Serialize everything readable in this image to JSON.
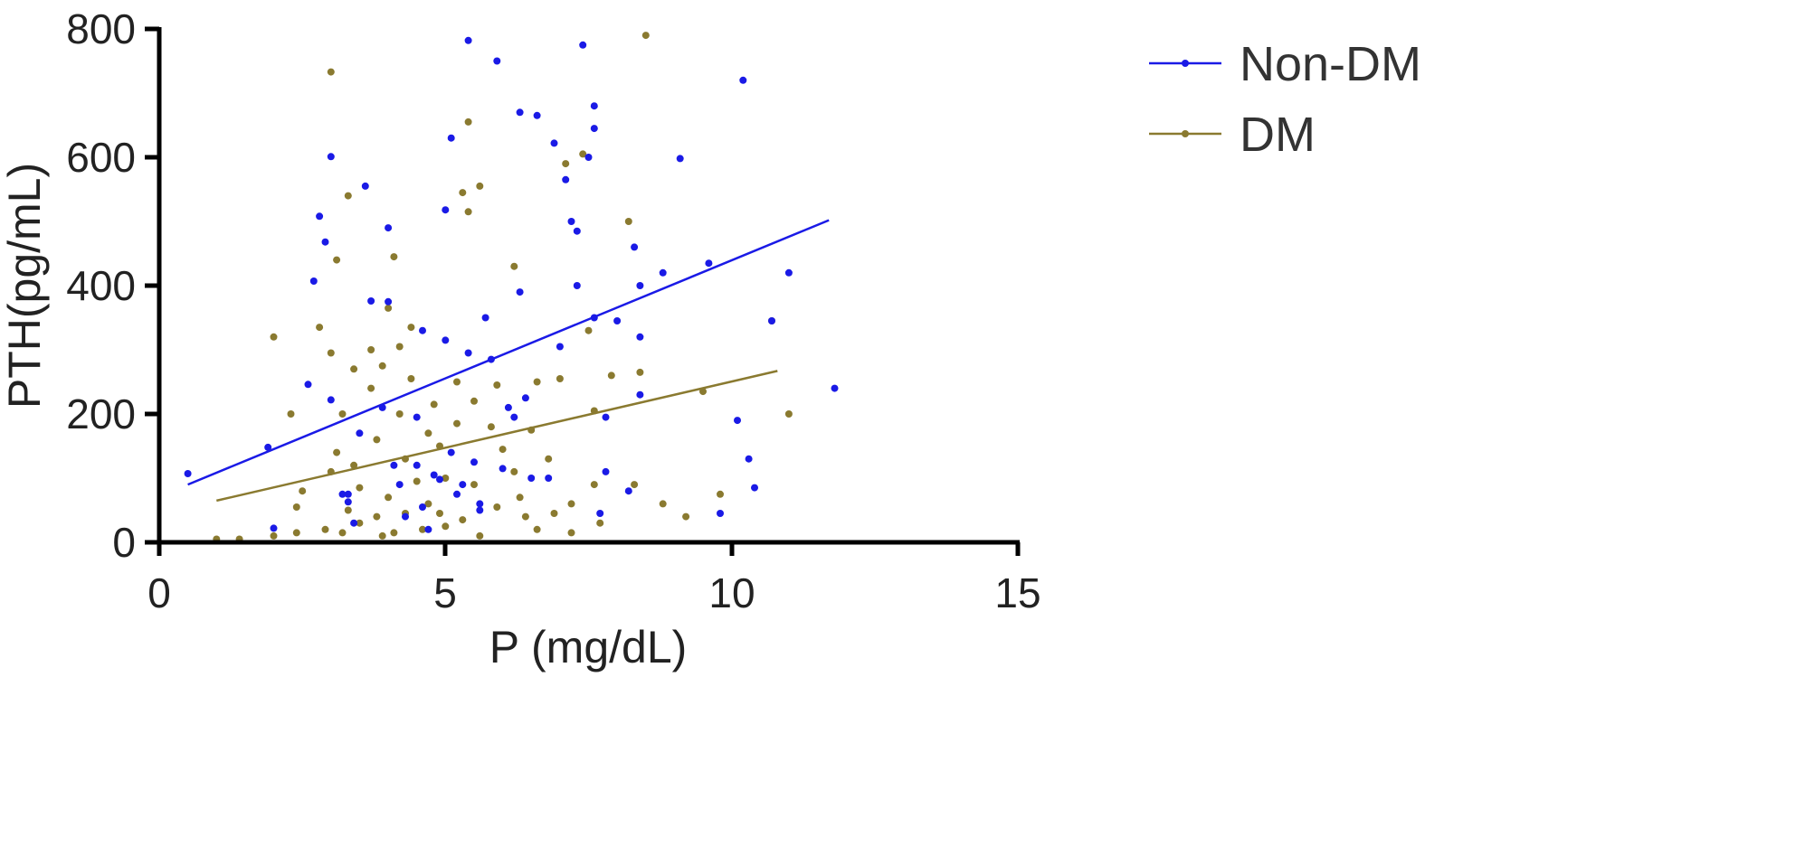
{
  "chart_data": {
    "type": "scatter",
    "xlabel": "P (mg/dL)",
    "ylabel": "PTH(pg/mL)",
    "xlim": [
      0,
      15
    ],
    "ylim": [
      0,
      800
    ],
    "x_ticks": [
      "0",
      "5",
      "10",
      "15"
    ],
    "y_ticks": [
      "0",
      "200",
      "400",
      "600",
      "800"
    ],
    "legend_position": "top-right",
    "series": [
      {
        "name": "Non-DM",
        "color": "#1a1ae6",
        "trend": {
          "x": [
            0.5,
            11.7
          ],
          "y": [
            90,
            502
          ]
        },
        "points": [
          [
            0.5,
            107
          ],
          [
            1.9,
            148
          ],
          [
            2.0,
            22
          ],
          [
            2.6,
            246
          ],
          [
            2.7,
            407
          ],
          [
            2.8,
            508
          ],
          [
            2.9,
            468
          ],
          [
            3.0,
            601
          ],
          [
            3.0,
            222
          ],
          [
            3.2,
            75
          ],
          [
            3.3,
            75
          ],
          [
            3.3,
            63
          ],
          [
            3.4,
            30
          ],
          [
            3.5,
            170
          ],
          [
            3.6,
            555
          ],
          [
            3.7,
            376
          ],
          [
            3.9,
            210
          ],
          [
            4.0,
            490
          ],
          [
            4.0,
            375
          ],
          [
            4.1,
            120
          ],
          [
            4.2,
            90
          ],
          [
            4.3,
            40
          ],
          [
            4.5,
            195
          ],
          [
            4.5,
            120
          ],
          [
            4.6,
            330
          ],
          [
            4.6,
            55
          ],
          [
            4.7,
            20
          ],
          [
            4.8,
            105
          ],
          [
            4.9,
            98
          ],
          [
            5.0,
            518
          ],
          [
            5.0,
            315
          ],
          [
            5.1,
            630
          ],
          [
            5.1,
            140
          ],
          [
            5.2,
            75
          ],
          [
            5.3,
            90
          ],
          [
            5.4,
            295
          ],
          [
            5.4,
            782
          ],
          [
            5.5,
            125
          ],
          [
            5.6,
            60
          ],
          [
            5.6,
            50
          ],
          [
            5.7,
            350
          ],
          [
            5.8,
            285
          ],
          [
            5.9,
            750
          ],
          [
            6.0,
            115
          ],
          [
            6.1,
            210
          ],
          [
            6.2,
            195
          ],
          [
            6.3,
            670
          ],
          [
            6.3,
            390
          ],
          [
            6.4,
            225
          ],
          [
            6.5,
            100
          ],
          [
            6.6,
            665
          ],
          [
            6.8,
            100
          ],
          [
            6.9,
            622
          ],
          [
            7.0,
            305
          ],
          [
            7.1,
            565
          ],
          [
            7.2,
            500
          ],
          [
            7.3,
            485
          ],
          [
            7.3,
            400
          ],
          [
            7.4,
            775
          ],
          [
            7.5,
            600
          ],
          [
            7.6,
            680
          ],
          [
            7.6,
            645
          ],
          [
            7.6,
            350
          ],
          [
            7.7,
            45
          ],
          [
            7.8,
            195
          ],
          [
            7.8,
            110
          ],
          [
            8.0,
            345
          ],
          [
            8.2,
            80
          ],
          [
            8.3,
            460
          ],
          [
            8.4,
            400
          ],
          [
            8.4,
            320
          ],
          [
            8.4,
            230
          ],
          [
            8.8,
            420
          ],
          [
            9.1,
            598
          ],
          [
            9.6,
            435
          ],
          [
            9.8,
            45
          ],
          [
            10.1,
            190
          ],
          [
            10.2,
            720
          ],
          [
            10.3,
            130
          ],
          [
            10.4,
            85
          ],
          [
            10.7,
            345
          ],
          [
            11.0,
            420
          ],
          [
            11.8,
            240
          ]
        ]
      },
      {
        "name": "DM",
        "color": "#8a7a30",
        "trend": {
          "x": [
            1.0,
            10.8
          ],
          "y": [
            65,
            267
          ]
        },
        "points": [
          [
            1.0,
            5
          ],
          [
            1.4,
            5
          ],
          [
            2.0,
            320
          ],
          [
            2.0,
            10
          ],
          [
            2.3,
            200
          ],
          [
            2.4,
            55
          ],
          [
            2.4,
            15
          ],
          [
            2.5,
            80
          ],
          [
            2.8,
            335
          ],
          [
            2.9,
            20
          ],
          [
            3.0,
            733
          ],
          [
            3.0,
            295
          ],
          [
            3.0,
            110
          ],
          [
            3.1,
            440
          ],
          [
            3.1,
            140
          ],
          [
            3.2,
            200
          ],
          [
            3.2,
            15
          ],
          [
            3.3,
            540
          ],
          [
            3.3,
            50
          ],
          [
            3.4,
            270
          ],
          [
            3.4,
            120
          ],
          [
            3.5,
            85
          ],
          [
            3.5,
            30
          ],
          [
            3.7,
            300
          ],
          [
            3.7,
            240
          ],
          [
            3.8,
            160
          ],
          [
            3.8,
            40
          ],
          [
            3.9,
            275
          ],
          [
            3.9,
            10
          ],
          [
            4.0,
            365
          ],
          [
            4.0,
            70
          ],
          [
            4.1,
            445
          ],
          [
            4.1,
            15
          ],
          [
            4.2,
            305
          ],
          [
            4.2,
            200
          ],
          [
            4.3,
            130
          ],
          [
            4.3,
            45
          ],
          [
            4.4,
            335
          ],
          [
            4.4,
            255
          ],
          [
            4.5,
            95
          ],
          [
            4.6,
            20
          ],
          [
            4.7,
            170
          ],
          [
            4.7,
            60
          ],
          [
            4.8,
            215
          ],
          [
            4.9,
            150
          ],
          [
            4.9,
            45
          ],
          [
            5.0,
            100
          ],
          [
            5.0,
            25
          ],
          [
            5.2,
            250
          ],
          [
            5.2,
            185
          ],
          [
            5.3,
            545
          ],
          [
            5.3,
            35
          ],
          [
            5.4,
            515
          ],
          [
            5.4,
            655
          ],
          [
            5.5,
            220
          ],
          [
            5.5,
            90
          ],
          [
            5.6,
            555
          ],
          [
            5.6,
            10
          ],
          [
            5.8,
            180
          ],
          [
            5.9,
            245
          ],
          [
            5.9,
            55
          ],
          [
            6.0,
            145
          ],
          [
            6.2,
            430
          ],
          [
            6.2,
            110
          ],
          [
            6.3,
            70
          ],
          [
            6.4,
            40
          ],
          [
            6.5,
            175
          ],
          [
            6.6,
            250
          ],
          [
            6.6,
            20
          ],
          [
            6.8,
            130
          ],
          [
            6.9,
            45
          ],
          [
            7.0,
            255
          ],
          [
            7.1,
            590
          ],
          [
            7.2,
            60
          ],
          [
            7.2,
            15
          ],
          [
            7.4,
            605
          ],
          [
            7.5,
            330
          ],
          [
            7.6,
            205
          ],
          [
            7.6,
            90
          ],
          [
            7.7,
            30
          ],
          [
            7.9,
            260
          ],
          [
            8.2,
            500
          ],
          [
            8.3,
            90
          ],
          [
            8.4,
            265
          ],
          [
            8.5,
            790
          ],
          [
            8.8,
            60
          ],
          [
            9.2,
            40
          ],
          [
            9.5,
            235
          ],
          [
            9.8,
            75
          ],
          [
            10.7,
            345
          ],
          [
            11.0,
            200
          ]
        ]
      }
    ]
  }
}
